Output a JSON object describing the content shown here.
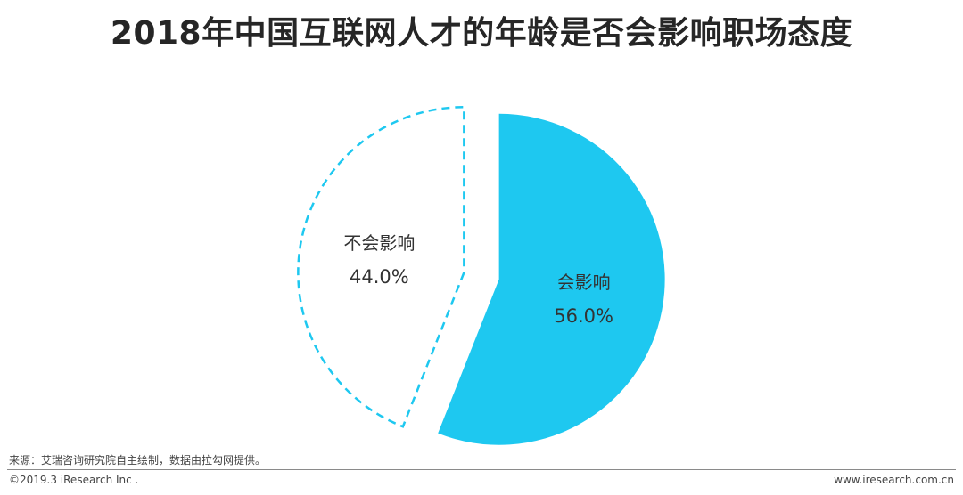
{
  "chart_data": {
    "type": "pie",
    "title": "2018年中国互联网人才的年龄是否会影响职场态度",
    "slices": [
      {
        "name": "会影响",
        "value": 56.0,
        "label": "56.0%",
        "color": "#1ec8f0",
        "style": "filled"
      },
      {
        "name": "不会影响",
        "value": 44.0,
        "label": "44.0%",
        "color": "#1ec8f0",
        "style": "dashed-outline"
      }
    ]
  },
  "footer": {
    "source": "来源：艾瑞咨询研究院自主绘制，数据由拉勾网提供。",
    "copyright": "©2019.3 iResearch Inc .",
    "website": "www.iresearch.com.cn"
  }
}
